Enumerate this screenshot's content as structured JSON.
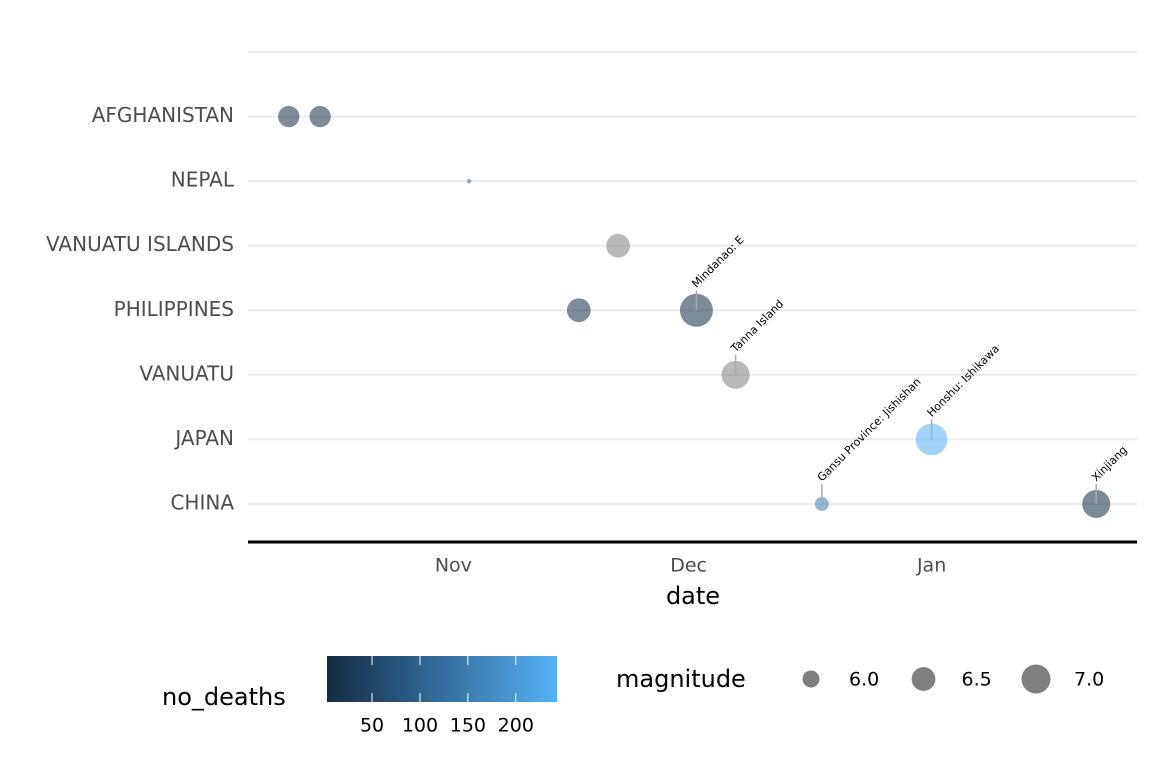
{
  "chart_data": {
    "type": "scatter",
    "categories": [
      null,
      "AFGHANISTAN",
      "NEPAL",
      "VANUATU ISLANDS",
      "PHILIPPINES",
      "VANUATU",
      "JAPAN",
      "CHINA"
    ],
    "x": [
      10,
      14,
      33,
      52,
      47,
      62,
      67,
      92,
      78,
      113
    ],
    "y": [
      "AFGHANISTAN",
      "AFGHANISTAN",
      "NEPAL",
      "VANUATU ISLANDS",
      "PHILIPPINES",
      "PHILIPPINES",
      "VANUATU",
      "JAPAN",
      "CHINA",
      "CHINA"
    ],
    "magnitude": [
      6.3,
      6.3,
      5.52,
      6.5,
      6.5,
      7.45,
      6.9,
      7.3,
      5.83,
      6.9
    ],
    "no_deaths": [
      5,
      5,
      150,
      null,
      5,
      3,
      null,
      240,
      150,
      3
    ],
    "labels": [
      null,
      null,
      null,
      null,
      null,
      "Mindanao: E",
      "Tanna Island",
      "Honshu: Ishikawa",
      "Gansu Province: Jishishan",
      "Xinjiang"
    ],
    "xlim": [
      4.8,
      118.2
    ],
    "xticks": [
      {
        "value": 31,
        "label": "Nov"
      },
      {
        "value": 61,
        "label": "Dec"
      },
      {
        "value": 92,
        "label": "Jan"
      }
    ],
    "xlabel": "date",
    "grid": true,
    "color_title": "no_deaths",
    "color_lim": [
      3,
      243
    ],
    "color_ticks": [
      50,
      100,
      150,
      200
    ],
    "color_low": "#132B43",
    "color_high": "#56B1F7",
    "na_color": "#7f7f7f",
    "size_title": "magnitude",
    "size_breaks": [
      {
        "value": 6,
        "label": "6.0"
      },
      {
        "value": 6.5,
        "label": "6.5"
      },
      {
        "value": 7,
        "label": "7.0"
      }
    ]
  }
}
